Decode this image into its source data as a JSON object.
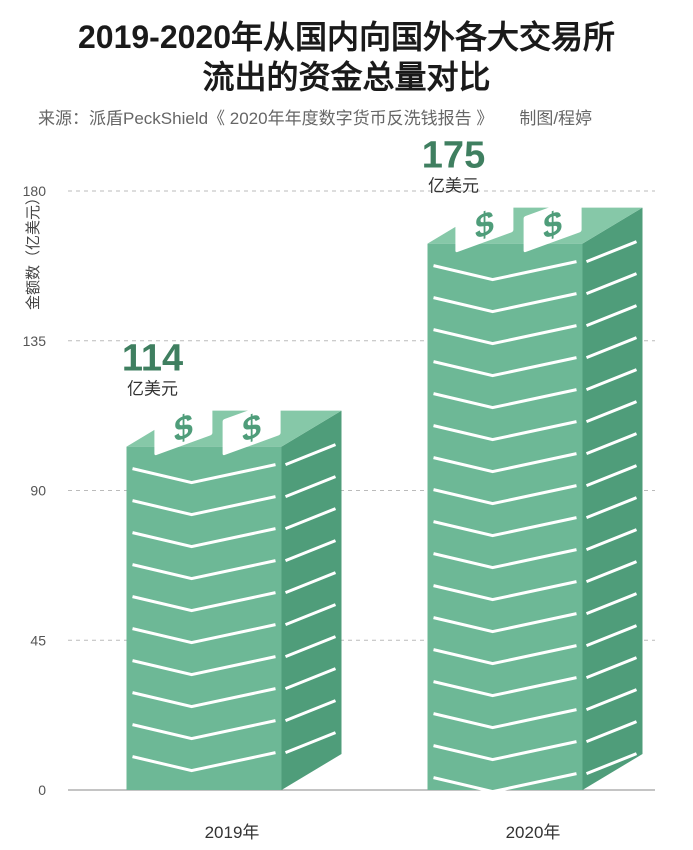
{
  "title_line1": "2019-2020年从国内向国外各大交易所",
  "title_line2": "流出的资金总量对比",
  "source": "来源：派盾PeckShield《 2020年年度数字货币反洗钱报告 》",
  "credit": "制图/程婷",
  "colors": {
    "money_front": "#6db896",
    "money_top": "#86c8a8",
    "money_dark": "#4f9d7a",
    "label": "#3f7f60",
    "grid": "#bbbbbb"
  },
  "icon": "dollar-sign-icon",
  "chart_data": {
    "type": "bar",
    "categories": [
      "2019年",
      "2020年"
    ],
    "values": [
      114,
      175
    ],
    "value_unit": "亿美元",
    "ylabel": "金额数（亿美元）",
    "ylim": [
      0,
      180
    ],
    "yticks": [
      0,
      45,
      90,
      135,
      180
    ],
    "grid": true
  }
}
